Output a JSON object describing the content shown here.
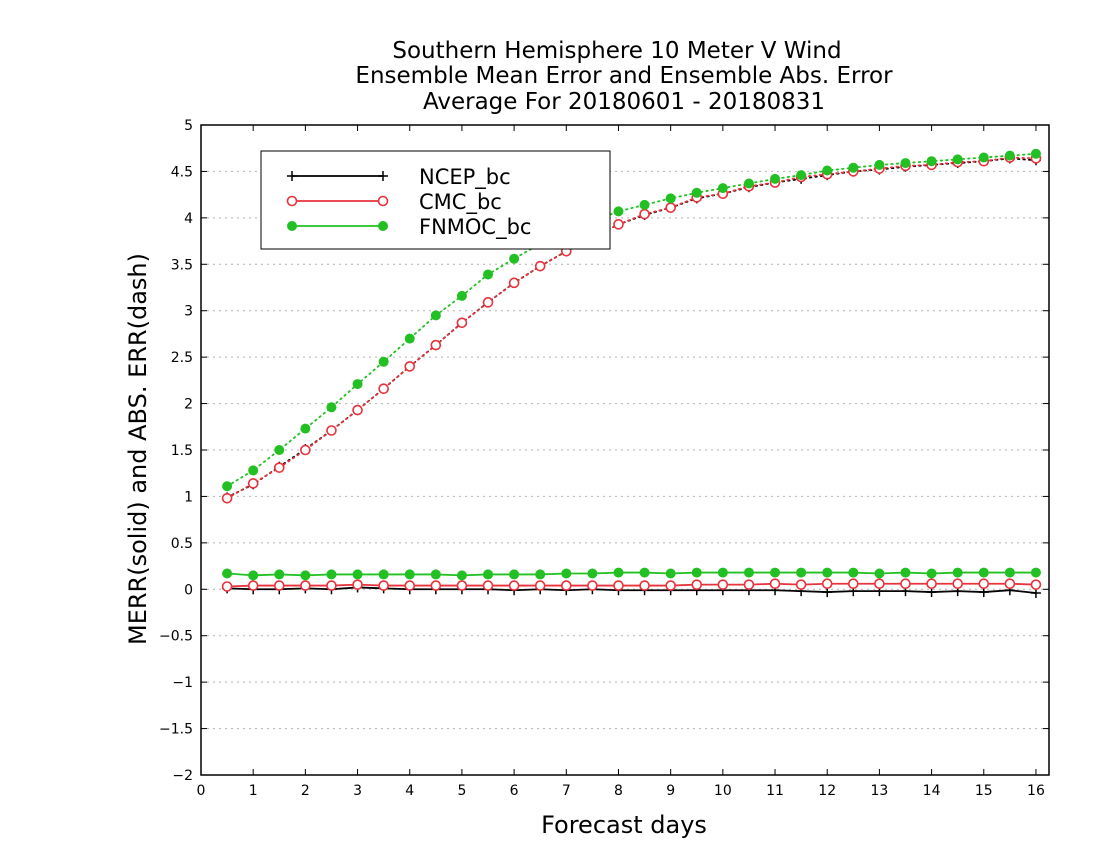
{
  "chart_data": {
    "type": "line",
    "title_lines": [
      "Southern Hemisphere 10 Meter V Wind",
      "Ensemble Mean Error and Ensemble Abs. Error",
      "Average For 20180601 - 20180831"
    ],
    "xlabel": "Forecast days",
    "ylabel": "MERR(solid) and ABS. ERR(dash)",
    "xlim": [
      0,
      16.25
    ],
    "ylim": [
      -2,
      5
    ],
    "x_ticks": [
      "0",
      "1",
      "2",
      "3",
      "4",
      "5",
      "6",
      "7",
      "8",
      "9",
      "10",
      "11",
      "12",
      "13",
      "14",
      "15",
      "16"
    ],
    "y_ticks": [
      "-2",
      "-1.5",
      "-1",
      "-0.5",
      "0",
      "0.5",
      "1",
      "1.5",
      "2",
      "2.5",
      "3",
      "3.5",
      "4",
      "4.5",
      "5"
    ],
    "grid": "horizontal dotted",
    "legend_position": "top-left",
    "x": [
      0.5,
      1,
      1.5,
      2,
      2.5,
      3,
      3.5,
      4,
      4.5,
      5,
      5.5,
      6,
      6.5,
      7,
      7.5,
      8,
      8.5,
      9,
      9.5,
      10,
      10.5,
      11,
      11.5,
      12,
      12.5,
      13,
      13.5,
      14,
      14.5,
      15,
      15.5,
      16
    ],
    "series": [
      {
        "name": "NCEP_bc",
        "color": "#000000",
        "marker": "plus",
        "merr": [
          0.01,
          0.0,
          0.0,
          0.01,
          0.0,
          0.02,
          0.01,
          0.0,
          0.0,
          0.0,
          0.0,
          -0.01,
          0.0,
          -0.01,
          0.0,
          -0.01,
          -0.01,
          -0.01,
          -0.01,
          -0.01,
          -0.01,
          -0.01,
          -0.02,
          -0.03,
          -0.02,
          -0.02,
          -0.02,
          -0.03,
          -0.02,
          -0.03,
          -0.01,
          -0.04
        ],
        "abs_err": [
          0.99,
          1.13,
          1.32,
          1.51,
          1.71,
          1.93,
          2.16,
          2.4,
          2.63,
          2.87,
          3.09,
          3.3,
          3.48,
          3.64,
          3.78,
          3.93,
          4.03,
          4.11,
          4.21,
          4.26,
          4.33,
          4.38,
          4.42,
          4.46,
          4.5,
          4.52,
          4.55,
          4.57,
          4.59,
          4.61,
          4.64,
          4.62
        ]
      },
      {
        "name": "CMC_bc",
        "color": "#e8323c",
        "marker": "open-circle",
        "merr": [
          0.03,
          0.04,
          0.04,
          0.04,
          0.04,
          0.05,
          0.04,
          0.04,
          0.04,
          0.04,
          0.04,
          0.04,
          0.04,
          0.04,
          0.04,
          0.04,
          0.04,
          0.04,
          0.05,
          0.05,
          0.05,
          0.06,
          0.05,
          0.06,
          0.06,
          0.06,
          0.06,
          0.06,
          0.06,
          0.06,
          0.06,
          0.05
        ],
        "abs_err": [
          0.98,
          1.14,
          1.31,
          1.5,
          1.71,
          1.93,
          2.16,
          2.4,
          2.63,
          2.87,
          3.09,
          3.3,
          3.48,
          3.64,
          3.79,
          3.93,
          4.04,
          4.11,
          4.22,
          4.26,
          4.34,
          4.38,
          4.44,
          4.47,
          4.5,
          4.53,
          4.56,
          4.57,
          4.6,
          4.61,
          4.65,
          4.64
        ]
      },
      {
        "name": "FNMOC_bc",
        "color": "#22c022",
        "marker": "filled-circle",
        "merr": [
          0.17,
          0.15,
          0.16,
          0.15,
          0.16,
          0.16,
          0.16,
          0.16,
          0.16,
          0.15,
          0.16,
          0.16,
          0.16,
          0.17,
          0.17,
          0.18,
          0.18,
          0.17,
          0.18,
          0.18,
          0.18,
          0.18,
          0.18,
          0.18,
          0.18,
          0.17,
          0.18,
          0.17,
          0.18,
          0.18,
          0.18,
          0.18
        ],
        "abs_err": [
          1.11,
          1.28,
          1.5,
          1.73,
          1.96,
          2.21,
          2.45,
          2.7,
          2.95,
          3.16,
          3.39,
          3.56,
          3.72,
          3.85,
          3.96,
          4.07,
          4.14,
          4.21,
          4.27,
          4.32,
          4.37,
          4.42,
          4.46,
          4.51,
          4.54,
          4.57,
          4.59,
          4.61,
          4.63,
          4.65,
          4.67,
          4.69
        ]
      }
    ]
  }
}
